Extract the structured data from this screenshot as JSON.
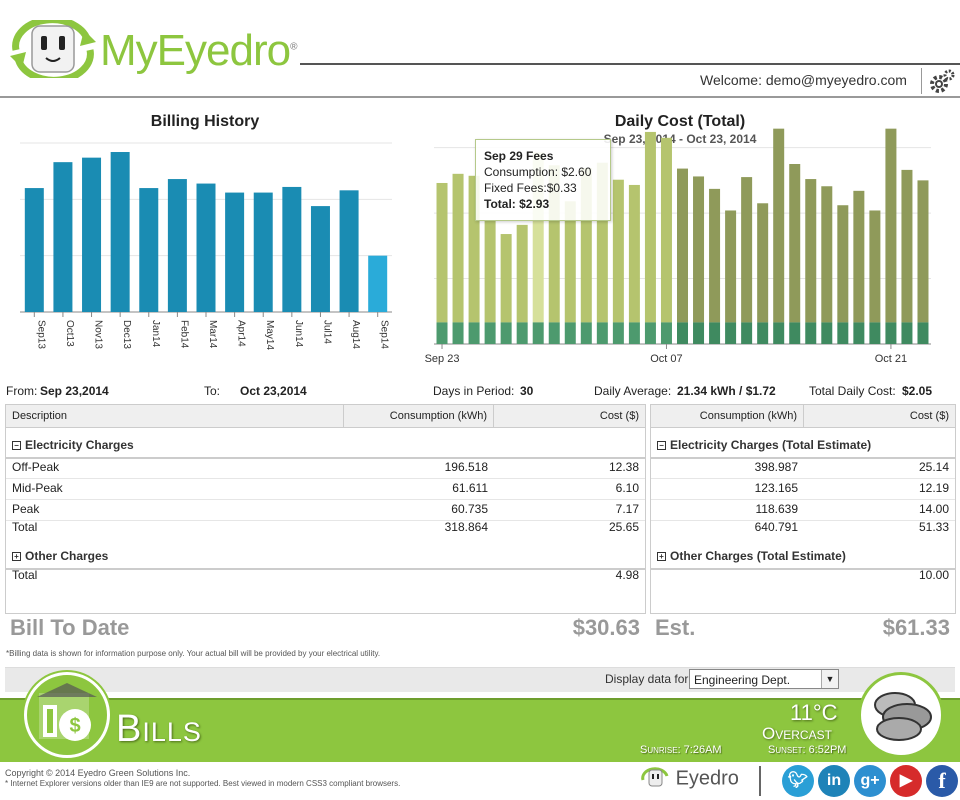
{
  "brand": {
    "name": "MyEyedro",
    "reg": "®"
  },
  "header": {
    "welcome": "Welcome: demo@myeyedro.com"
  },
  "billing_history": {
    "title": "Billing History"
  },
  "daily_cost": {
    "title": "Daily Cost (Total)",
    "subtitle": "Sep 23, 2014 - Oct 23, 2014"
  },
  "tooltip": {
    "heading": "Sep 29 Fees",
    "consumption": "Consumption: $2.60",
    "fixed": "Fixed Fees:$0.33",
    "total_label": "Total:",
    "total_value": "$2.93"
  },
  "chart_data": [
    {
      "type": "bar",
      "title": "Billing History",
      "categories": [
        "Sep13",
        "Oct13",
        "Nov13",
        "Dec13",
        "Jan14",
        "Feb14",
        "Mar14",
        "Apr14",
        "May14",
        "Jun14",
        "Jul14",
        "Aug14",
        "Sep14"
      ],
      "values": [
        110,
        133,
        137,
        142,
        110,
        118,
        114,
        106,
        106,
        111,
        94,
        108,
        50
      ],
      "colors": {
        "bar": "#1a8cb3",
        "current": "#2aabd9"
      },
      "grid": true
    },
    {
      "type": "bar",
      "title": "Daily Cost (Total)",
      "subtitle": "Sep 23, 2014 - Oct 23, 2014",
      "categories": [
        "Sep 23",
        "Sep 24",
        "Sep 25",
        "Sep 26",
        "Sep 27",
        "Sep 28",
        "Sep 29",
        "Sep 30",
        "Oct 01",
        "Oct 02",
        "Oct 03",
        "Oct 04",
        "Oct 05",
        "Oct 06",
        "Oct 07",
        "Oct 08",
        "Oct 09",
        "Oct 10",
        "Oct 11",
        "Oct 12",
        "Oct 13",
        "Oct 14",
        "Oct 15",
        "Oct 16",
        "Oct 17",
        "Oct 18",
        "Oct 19",
        "Oct 20",
        "Oct 21",
        "Oct 22",
        "Oct 23"
      ],
      "x_tick_labels": [
        "Sep 23",
        "Oct 07",
        "Oct 21"
      ],
      "series": [
        {
          "name": "Fixed Fees",
          "values": [
            0.33,
            0.33,
            0.33,
            0.33,
            0.33,
            0.33,
            0.33,
            0.33,
            0.33,
            0.33,
            0.33,
            0.33,
            0.33,
            0.33,
            0.33,
            0.33,
            0.33,
            0.33,
            0.33,
            0.33,
            0.33,
            0.33,
            0.33,
            0.33,
            0.33,
            0.33,
            0.33,
            0.33,
            0.33,
            0.33,
            0.33
          ]
        },
        {
          "name": "Consumption",
          "values": [
            2.13,
            2.27,
            2.24,
            1.55,
            1.35,
            1.49,
            2.6,
            2.4,
            1.85,
            2.36,
            2.44,
            2.18,
            2.1,
            2.91,
            2.82,
            2.35,
            2.23,
            2.04,
            1.71,
            2.22,
            1.82,
            2.96,
            2.42,
            2.19,
            2.08,
            1.79,
            2.01,
            1.71,
            2.96,
            2.33,
            2.17
          ]
        }
      ],
      "highlight": "Sep 29",
      "colors": {
        "fixed": "#4d9a6e",
        "consumption_past": "#b5c46e",
        "consumption_selected": "#d6e09a",
        "consumption_future": "#8f9a5a",
        "fixed_future": "#3f8a60"
      },
      "grid": true
    }
  ],
  "summary": {
    "from_label": "From:",
    "from_value": "Sep 23,2014",
    "to_label": "To:",
    "to_value": "Oct 23,2014",
    "days_label": "Days in Period:",
    "days_value": "30",
    "avg_label": "Daily Average:",
    "avg_value": "21.34 kWh / $1.72",
    "total_label": "Total Daily Cost:",
    "total_value": "$2.05"
  },
  "left_table": {
    "headers": [
      "Description",
      "Consumption (kWh)",
      "Cost ($)"
    ],
    "group1": "Electricity Charges",
    "rows": [
      {
        "label": "Off-Peak",
        "kwh": "196.518",
        "cost": "12.38"
      },
      {
        "label": "Mid-Peak",
        "kwh": "61.611",
        "cost": "6.10"
      },
      {
        "label": "Peak",
        "kwh": "60.735",
        "cost": "7.17"
      },
      {
        "label": "Total",
        "kwh": "318.864",
        "cost": "25.65"
      }
    ],
    "group2": "Other Charges",
    "other_total_label": "Total",
    "other_total_cost": "4.98",
    "bill_label": "Bill To Date",
    "bill_value": "$30.63"
  },
  "right_table": {
    "headers": [
      "Consumption (kWh)",
      "Cost ($)"
    ],
    "group1": "Electricity Charges (Total Estimate)",
    "rows": [
      {
        "kwh": "398.987",
        "cost": "25.14"
      },
      {
        "kwh": "123.165",
        "cost": "12.19"
      },
      {
        "kwh": "118.639",
        "cost": "14.00"
      },
      {
        "kwh": "640.791",
        "cost": "51.33"
      }
    ],
    "group2": "Other Charges (Total Estimate)",
    "other_total_cost": "10.00",
    "est_label": "Est.",
    "est_value": "$61.33"
  },
  "disclaimer": "*Billing data is shown for information purpose only. Your actual bill will be provided by your electrical utility.",
  "filter": {
    "label": "Display data for:",
    "selected": "Engineering Dept."
  },
  "band": {
    "title": "Bills",
    "temperature": "11°C",
    "condition": "Overcast",
    "sunrise": "Sunrise: 7:26AM",
    "sunset": "Sunset: 6:52PM"
  },
  "footer": {
    "copyright": "Copyright © 2014 Eyedro Green Solutions Inc.",
    "note": "* Internet Explorer versions older than IE9 are not supported. Best viewed in modern CSS3 compliant browsers.",
    "logo": "Eyedro",
    "social": [
      "twitter-icon",
      "linkedin-icon",
      "google-plus-icon",
      "youtube-icon",
      "facebook-icon"
    ]
  }
}
